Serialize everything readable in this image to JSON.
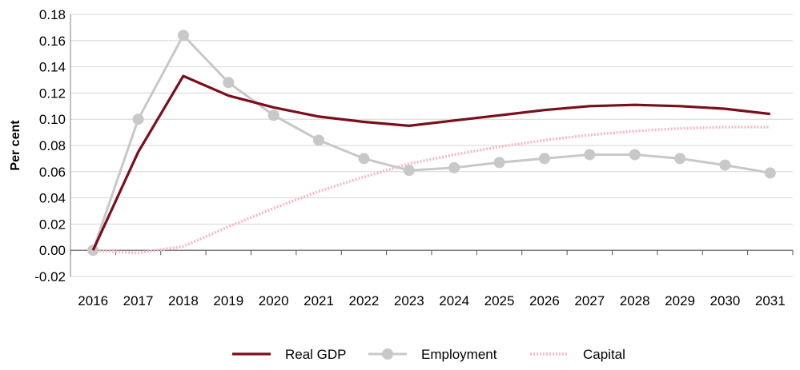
{
  "chart_data": {
    "type": "line",
    "title": "",
    "xlabel": "",
    "ylabel": "Per cent",
    "categories": [
      "2016",
      "2017",
      "2018",
      "2019",
      "2020",
      "2021",
      "2022",
      "2023",
      "2024",
      "2025",
      "2026",
      "2027",
      "2028",
      "2029",
      "2030",
      "2031"
    ],
    "ylim": [
      -0.02,
      0.18
    ],
    "yticks": [
      -0.02,
      0.0,
      0.02,
      0.04,
      0.06,
      0.08,
      0.1,
      0.12,
      0.14,
      0.16,
      0.18
    ],
    "ytick_labels": [
      "-0.02",
      "0.00",
      "0.02",
      "0.04",
      "0.06",
      "0.08",
      "0.10",
      "0.12",
      "0.14",
      "0.16",
      "0.18"
    ],
    "grid": true,
    "legend_position": "bottom",
    "series": [
      {
        "name": "Real GDP",
        "color": "#7a0e1c",
        "style": "solid",
        "values": [
          0.0,
          0.075,
          0.133,
          0.118,
          0.109,
          0.102,
          0.098,
          0.095,
          0.099,
          0.103,
          0.107,
          0.11,
          0.111,
          0.11,
          0.108,
          0.104
        ]
      },
      {
        "name": "Employment",
        "color": "#c8c8c8",
        "style": "solid-markers",
        "values": [
          0.0,
          0.1,
          0.164,
          0.128,
          0.103,
          0.084,
          0.07,
          0.061,
          0.063,
          0.067,
          0.07,
          0.073,
          0.073,
          0.07,
          0.065,
          0.059
        ]
      },
      {
        "name": "Capital",
        "color": "#f7b8c4",
        "style": "dotted",
        "values": [
          0.0,
          -0.002,
          0.003,
          0.018,
          0.032,
          0.045,
          0.056,
          0.066,
          0.073,
          0.079,
          0.084,
          0.088,
          0.091,
          0.093,
          0.094,
          0.094
        ]
      }
    ]
  }
}
